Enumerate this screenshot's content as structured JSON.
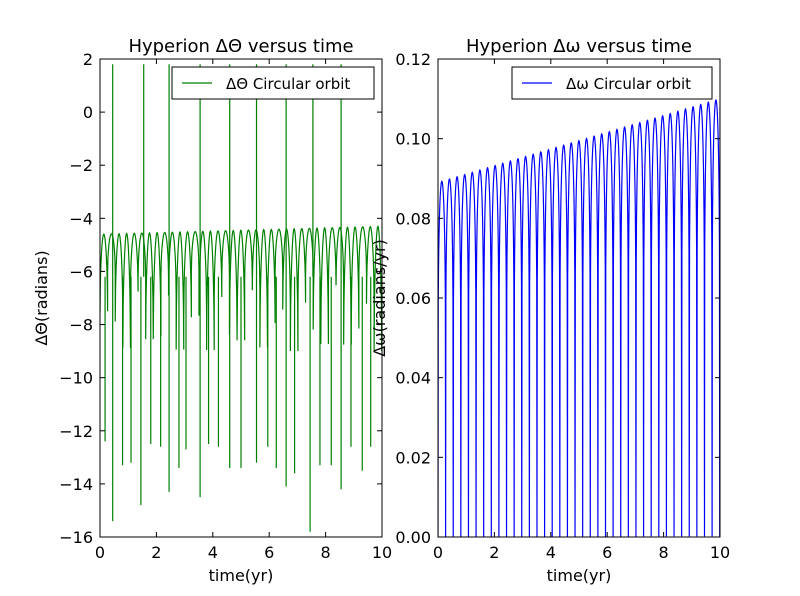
{
  "chart_data": [
    {
      "type": "line",
      "title": "Hyperion  ΔΘ versus time",
      "xlabel": "time(yr)",
      "ylabel": "ΔΘ(radians)",
      "xlim": [
        0,
        10
      ],
      "ylim": [
        -16,
        2
      ],
      "xticks": [
        "0",
        "2",
        "4",
        "6",
        "8",
        "10"
      ],
      "yticks": [
        "2",
        "0",
        "−2",
        "−4",
        "−6",
        "−8",
        "−10",
        "−12",
        "−14",
        "−16"
      ],
      "grid": false,
      "legend_position": "top-right",
      "series": [
        {
          "name": "ΔΘ Circular orbit",
          "color": "#008000",
          "oscillation_period_yr": 0.27,
          "envelope_max_start": -4.6,
          "envelope_max_end": -4.3,
          "baseline_value": -5.5,
          "spike_upper_value": 1.8,
          "spike_times_yr": [
            0.45,
            1.55,
            2.45,
            3.55,
            4.6,
            5.55,
            6.6,
            7.55,
            8.55
          ],
          "minima": [
            {
              "t": 0.18,
              "v": -12.4
            },
            {
              "t": 0.45,
              "v": -15.4
            },
            {
              "t": 0.8,
              "v": -13.3
            },
            {
              "t": 1.1,
              "v": -13.2
            },
            {
              "t": 1.45,
              "v": -14.8
            },
            {
              "t": 1.8,
              "v": -12.5
            },
            {
              "t": 2.15,
              "v": -12.6
            },
            {
              "t": 2.45,
              "v": -14.3
            },
            {
              "t": 2.8,
              "v": -13.4
            },
            {
              "t": 3.05,
              "v": -12.7
            },
            {
              "t": 3.55,
              "v": -14.5
            },
            {
              "t": 3.85,
              "v": -12.5
            },
            {
              "t": 4.2,
              "v": -12.6
            },
            {
              "t": 4.6,
              "v": -13.4
            },
            {
              "t": 5.0,
              "v": -13.4
            },
            {
              "t": 5.55,
              "v": -13.2
            },
            {
              "t": 5.95,
              "v": -12.6
            },
            {
              "t": 6.25,
              "v": -13.4
            },
            {
              "t": 6.6,
              "v": -14.1
            },
            {
              "t": 6.9,
              "v": -13.6
            },
            {
              "t": 7.45,
              "v": -15.8
            },
            {
              "t": 7.8,
              "v": -13.3
            },
            {
              "t": 8.2,
              "v": -13.3
            },
            {
              "t": 8.55,
              "v": -14.2
            },
            {
              "t": 8.9,
              "v": -12.6
            },
            {
              "t": 9.3,
              "v": -13.5
            },
            {
              "t": 9.6,
              "v": -12.6
            }
          ]
        }
      ]
    },
    {
      "type": "line",
      "title": "Hyperion  Δω versus time",
      "xlabel": "time(yr)",
      "ylabel": "Δω(radians/yr)",
      "xlim": [
        0,
        10
      ],
      "ylim": [
        0,
        0.12
      ],
      "xticks": [
        "0",
        "2",
        "4",
        "6",
        "8",
        "10"
      ],
      "yticks": [
        "0.12",
        "0.10",
        "0.08",
        "0.06",
        "0.04",
        "0.02",
        "0.00"
      ],
      "grid": false,
      "legend_position": "top-right",
      "series": [
        {
          "name": "Δω Circular orbit",
          "color": "#0000ff",
          "oscillation_period_yr": 0.27,
          "peak_start": 0.089,
          "peak_end": 0.11,
          "trough_value": 0.0
        }
      ]
    }
  ]
}
